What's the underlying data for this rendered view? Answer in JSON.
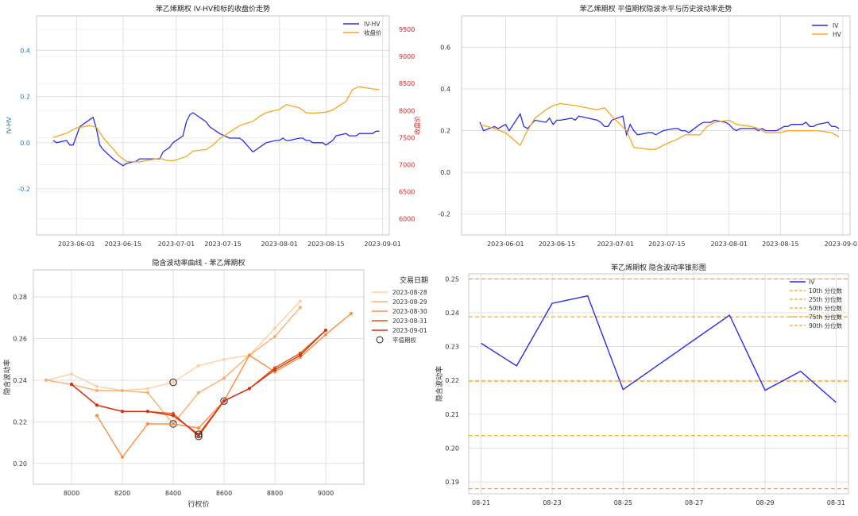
{
  "colors": {
    "blue": "#2b2bea",
    "orange": "#f5a623",
    "red_axis": "#e02020",
    "blue_axis": "#1f77b4",
    "grid": "#d9d9d9",
    "maturity": [
      "#fdd0a2",
      "#fdae6b",
      "#fd8d3c",
      "#e6550d",
      "#d62e12"
    ]
  },
  "chart_data": [
    {
      "type": "line",
      "title": "苯乙烯期权 IV-HV和标的收盘价走势",
      "ylabel": "IV-HV",
      "y2label": "收盘价",
      "ylim": [
        -0.4,
        0.55
      ],
      "y2lim": [
        5700,
        9750
      ],
      "yticks": [
        -0.2,
        0.0,
        0.2,
        0.4
      ],
      "y2ticks": [
        6000,
        6500,
        7000,
        7500,
        8000,
        8500,
        9000,
        9500
      ],
      "xticks": [
        "2023-06-01",
        "2023-06-15",
        "2023-07-01",
        "2023-07-15",
        "2023-08-01",
        "2023-08-15",
        "2023-09-01"
      ],
      "legend": "top-right",
      "series": [
        {
          "name": "IV-HV",
          "axis": "left",
          "color": "blue",
          "x": [
            "2023-05-25",
            "2023-05-26",
            "2023-05-29",
            "2023-05-30",
            "2023-05-31",
            "2023-06-01",
            "2023-06-02",
            "2023-06-05",
            "2023-06-06",
            "2023-06-07",
            "2023-06-08",
            "2023-06-09",
            "2023-06-12",
            "2023-06-13",
            "2023-06-14",
            "2023-06-15",
            "2023-06-16",
            "2023-06-19",
            "2023-06-20",
            "2023-06-21",
            "2023-06-26",
            "2023-06-27",
            "2023-06-28",
            "2023-06-29",
            "2023-06-30",
            "2023-07-03",
            "2023-07-04",
            "2023-07-05",
            "2023-07-06",
            "2023-07-07",
            "2023-07-10",
            "2023-07-11",
            "2023-07-12",
            "2023-07-13",
            "2023-07-14",
            "2023-07-17",
            "2023-07-18",
            "2023-07-19",
            "2023-07-20",
            "2023-07-21",
            "2023-07-24",
            "2023-07-25",
            "2023-07-26",
            "2023-07-27",
            "2023-07-28",
            "2023-07-31",
            "2023-08-01",
            "2023-08-02",
            "2023-08-03",
            "2023-08-04",
            "2023-08-07",
            "2023-08-08",
            "2023-08-09",
            "2023-08-10",
            "2023-08-11",
            "2023-08-14",
            "2023-08-15",
            "2023-08-16",
            "2023-08-17",
            "2023-08-18",
            "2023-08-21",
            "2023-08-22",
            "2023-08-23",
            "2023-08-24",
            "2023-08-25",
            "2023-08-28",
            "2023-08-29",
            "2023-08-30",
            "2023-08-31"
          ],
          "y": [
            0.01,
            0.0,
            0.01,
            -0.01,
            -0.01,
            0.03,
            0.07,
            0.1,
            0.11,
            0.06,
            -0.01,
            -0.03,
            -0.07,
            -0.08,
            -0.09,
            -0.1,
            -0.09,
            -0.08,
            -0.07,
            -0.07,
            -0.07,
            -0.04,
            -0.03,
            -0.02,
            0.0,
            0.03,
            0.09,
            0.12,
            0.13,
            0.12,
            0.09,
            0.07,
            0.06,
            0.05,
            0.04,
            0.02,
            0.02,
            0.02,
            0.02,
            0.01,
            -0.04,
            -0.03,
            -0.02,
            -0.01,
            0.0,
            0.01,
            0.01,
            0.02,
            0.01,
            0.01,
            0.02,
            0.02,
            0.01,
            0.01,
            0.0,
            0.0,
            -0.01,
            0.0,
            0.01,
            0.03,
            0.04,
            0.03,
            0.03,
            0.03,
            0.04,
            0.04,
            0.04,
            0.05,
            0.05
          ]
        },
        {
          "name": "收盘价",
          "axis": "right",
          "color": "orange",
          "x": [
            "2023-05-25",
            "2023-05-29",
            "2023-06-01",
            "2023-06-05",
            "2023-06-07",
            "2023-06-09",
            "2023-06-12",
            "2023-06-14",
            "2023-06-16",
            "2023-06-20",
            "2023-06-26",
            "2023-06-28",
            "2023-06-30",
            "2023-07-04",
            "2023-07-06",
            "2023-07-10",
            "2023-07-12",
            "2023-07-14",
            "2023-07-18",
            "2023-07-20",
            "2023-07-24",
            "2023-07-26",
            "2023-07-28",
            "2023-08-01",
            "2023-08-03",
            "2023-08-07",
            "2023-08-09",
            "2023-08-11",
            "2023-08-15",
            "2023-08-17",
            "2023-08-21",
            "2023-08-23",
            "2023-08-25",
            "2023-08-29",
            "2023-08-31"
          ],
          "y": [
            7500,
            7580,
            7680,
            7720,
            7690,
            7500,
            7290,
            7150,
            7060,
            7050,
            7120,
            7080,
            7070,
            7150,
            7250,
            7280,
            7360,
            7480,
            7640,
            7720,
            7800,
            7890,
            7960,
            8020,
            8110,
            8050,
            7960,
            7950,
            7970,
            8010,
            8170,
            8390,
            8440,
            8400,
            8390
          ]
        }
      ]
    },
    {
      "type": "line",
      "title": "苯乙烯期权 平值期权隐波水平与历史波动率走势",
      "ylim": [
        -0.3,
        0.75
      ],
      "yticks": [
        -0.2,
        0.0,
        0.2,
        0.4,
        0.6
      ],
      "xticks": [
        "2023-06-01",
        "2023-06-15",
        "2023-07-01",
        "2023-07-15",
        "2023-08-01",
        "2023-08-15",
        "2023-09-01"
      ],
      "legend": "top-right",
      "series": [
        {
          "name": "IV",
          "color": "blue",
          "x": [
            "2023-05-25",
            "2023-05-26",
            "2023-05-29",
            "2023-05-30",
            "2023-05-31",
            "2023-06-01",
            "2023-06-02",
            "2023-06-05",
            "2023-06-06",
            "2023-06-07",
            "2023-06-08",
            "2023-06-09",
            "2023-06-12",
            "2023-06-13",
            "2023-06-14",
            "2023-06-15",
            "2023-06-16",
            "2023-06-19",
            "2023-06-20",
            "2023-06-21",
            "2023-06-26",
            "2023-06-27",
            "2023-06-28",
            "2023-06-29",
            "2023-06-30",
            "2023-07-03",
            "2023-07-04",
            "2023-07-05",
            "2023-07-06",
            "2023-07-07",
            "2023-07-10",
            "2023-07-11",
            "2023-07-12",
            "2023-07-13",
            "2023-07-14",
            "2023-07-17",
            "2023-07-18",
            "2023-07-19",
            "2023-07-20",
            "2023-07-21",
            "2023-07-24",
            "2023-07-25",
            "2023-07-26",
            "2023-07-27",
            "2023-07-28",
            "2023-07-31",
            "2023-08-01",
            "2023-08-02",
            "2023-08-03",
            "2023-08-04",
            "2023-08-07",
            "2023-08-08",
            "2023-08-09",
            "2023-08-10",
            "2023-08-11",
            "2023-08-14",
            "2023-08-15",
            "2023-08-16",
            "2023-08-17",
            "2023-08-18",
            "2023-08-21",
            "2023-08-22",
            "2023-08-23",
            "2023-08-24",
            "2023-08-25",
            "2023-08-28",
            "2023-08-29",
            "2023-08-30",
            "2023-08-31"
          ],
          "y": [
            0.24,
            0.2,
            0.22,
            0.21,
            0.22,
            0.23,
            0.2,
            0.28,
            0.22,
            0.21,
            0.23,
            0.25,
            0.24,
            0.26,
            0.23,
            0.25,
            0.25,
            0.26,
            0.25,
            0.27,
            0.25,
            0.24,
            0.22,
            0.22,
            0.25,
            0.27,
            0.18,
            0.23,
            0.2,
            0.18,
            0.19,
            0.19,
            0.18,
            0.19,
            0.2,
            0.21,
            0.21,
            0.2,
            0.2,
            0.19,
            0.23,
            0.24,
            0.24,
            0.24,
            0.25,
            0.24,
            0.23,
            0.21,
            0.2,
            0.21,
            0.21,
            0.21,
            0.2,
            0.21,
            0.2,
            0.2,
            0.21,
            0.22,
            0.22,
            0.23,
            0.23,
            0.24,
            0.22,
            0.22,
            0.23,
            0.24,
            0.22,
            0.22,
            0.21
          ]
        },
        {
          "name": "HV",
          "color": "orange",
          "x": [
            "2023-05-25",
            "2023-05-29",
            "2023-06-01",
            "2023-06-05",
            "2023-06-07",
            "2023-06-09",
            "2023-06-12",
            "2023-06-14",
            "2023-06-16",
            "2023-06-20",
            "2023-06-26",
            "2023-06-28",
            "2023-06-30",
            "2023-07-04",
            "2023-07-06",
            "2023-07-10",
            "2023-07-12",
            "2023-07-14",
            "2023-07-18",
            "2023-07-20",
            "2023-07-24",
            "2023-07-26",
            "2023-07-28",
            "2023-08-01",
            "2023-08-03",
            "2023-08-07",
            "2023-08-09",
            "2023-08-11",
            "2023-08-15",
            "2023-08-17",
            "2023-08-21",
            "2023-08-23",
            "2023-08-25",
            "2023-08-29",
            "2023-08-31"
          ],
          "y": [
            0.23,
            0.21,
            0.19,
            0.13,
            0.2,
            0.26,
            0.3,
            0.32,
            0.33,
            0.32,
            0.3,
            0.31,
            0.27,
            0.2,
            0.12,
            0.11,
            0.11,
            0.13,
            0.16,
            0.18,
            0.18,
            0.22,
            0.24,
            0.25,
            0.23,
            0.22,
            0.21,
            0.19,
            0.19,
            0.2,
            0.2,
            0.2,
            0.2,
            0.19,
            0.17
          ]
        }
      ]
    },
    {
      "type": "line",
      "title": "隐含波动率曲线 - 苯乙烯期权",
      "xlabel": "行权价",
      "ylabel": "隐含波动率",
      "xlim": [
        7850,
        9150
      ],
      "ylim": [
        0.19,
        0.293
      ],
      "xticks": [
        8000,
        8200,
        8400,
        8600,
        8800,
        9000
      ],
      "yticks": [
        0.2,
        0.22,
        0.24,
        0.26,
        0.28
      ],
      "legend": "outside-right",
      "legend_title": "交易日期",
      "atm_label": "平值期权",
      "series": [
        {
          "name": "2023-08-28",
          "x": [
            7900,
            8000,
            8100,
            8200,
            8300,
            8400,
            8500,
            8600,
            8700,
            8800,
            8900
          ],
          "y": [
            0.24,
            0.243,
            0.237,
            0.235,
            0.236,
            0.239,
            0.247,
            0.25,
            0.252,
            0.265,
            0.278
          ],
          "atm": 8400
        },
        {
          "name": "2023-08-29",
          "x": [
            7900,
            8000,
            8100,
            8200,
            8300,
            8400,
            8500,
            8600,
            8700,
            8800,
            8900
          ],
          "y": [
            0.24,
            0.238,
            0.235,
            0.235,
            0.234,
            0.219,
            0.234,
            0.241,
            0.252,
            0.261,
            0.275
          ],
          "atm": 8400
        },
        {
          "name": "2023-08-30",
          "x": [
            8100,
            8200,
            8300,
            8400,
            8500,
            8600,
            8700,
            8800,
            8900,
            9000,
            9100
          ],
          "y": [
            0.223,
            0.203,
            0.219,
            0.219,
            0.217,
            0.23,
            0.252,
            0.244,
            0.251,
            0.262,
            0.272
          ],
          "atm": 8600
        },
        {
          "name": "2023-08-31",
          "x": [
            8000,
            8100,
            8200,
            8300,
            8400,
            8500,
            8600,
            8700,
            8800,
            8900,
            9000
          ],
          "y": [
            0.238,
            0.228,
            0.225,
            0.225,
            0.224,
            0.213,
            0.23,
            0.236,
            0.246,
            0.253,
            0.264
          ],
          "atm": 8500
        },
        {
          "name": "2023-09-01",
          "x": [
            8000,
            8100,
            8200,
            8300,
            8400,
            8500,
            8600,
            8700,
            8800,
            8900,
            9000
          ],
          "y": [
            0.238,
            0.228,
            0.225,
            0.225,
            0.223,
            0.214,
            0.23,
            0.236,
            0.245,
            0.252,
            0.264
          ],
          "atm": 8500
        }
      ]
    },
    {
      "type": "line",
      "title": "苯乙烯期权 隐含波动率锥形图",
      "ylabel": "隐含波动率",
      "ylim": [
        0.1865,
        0.2515
      ],
      "yticks": [
        0.19,
        0.2,
        0.21,
        0.22,
        0.23,
        0.24,
        0.25
      ],
      "xticks": [
        "08-21",
        "08-23",
        "08-25",
        "08-27",
        "08-29",
        "08-31"
      ],
      "legend": "top-right",
      "series": [
        {
          "name": "IV",
          "color": "blue",
          "x": [
            "08-21",
            "08-22",
            "08-23",
            "08-24",
            "08-25",
            "08-28",
            "08-29",
            "08-30",
            "08-31"
          ],
          "y": [
            0.231,
            0.2243,
            0.2428,
            0.245,
            0.2173,
            0.2393,
            0.2171,
            0.2227,
            0.2135
          ]
        }
      ],
      "quantiles": [
        {
          "name": "10th 分位数",
          "value": 0.188
        },
        {
          "name": "25th 分位数",
          "value": 0.2037
        },
        {
          "name": "50th 分位数",
          "value": 0.2198
        },
        {
          "name": "75th 分位数",
          "value": 0.2388
        },
        {
          "name": "90th 分位数",
          "value": 0.25
        }
      ]
    }
  ]
}
